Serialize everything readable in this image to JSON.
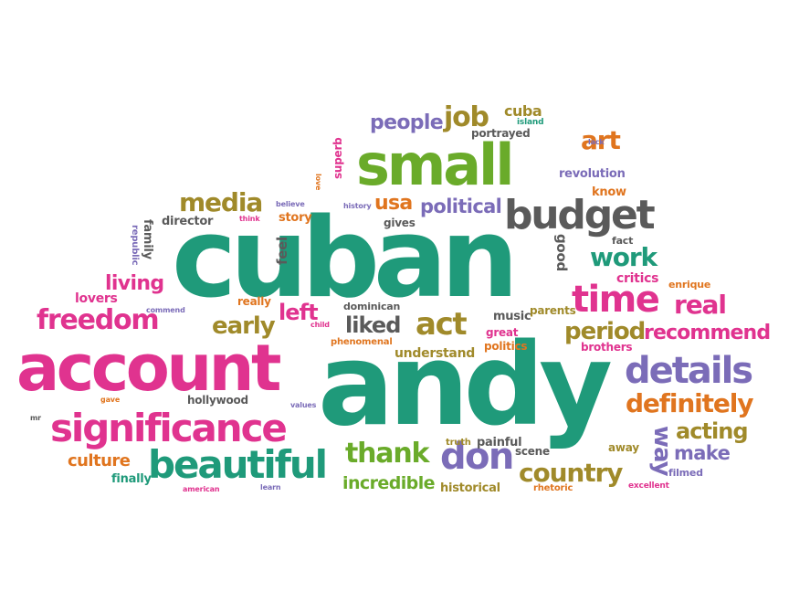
{
  "palette": {
    "green": "#1f9a7a",
    "pink": "#e0338f",
    "purple": "#7b6cb8",
    "orange": "#e0751f",
    "olive": "#a08a2a",
    "gray": "#5a5a5a",
    "lime": "#6aab2a"
  },
  "words": [
    {
      "text": "cuban",
      "color": "green"
    },
    {
      "text": "andy",
      "color": "green"
    },
    {
      "text": "account",
      "color": "pink"
    },
    {
      "text": "small",
      "color": "lime"
    },
    {
      "text": "significance",
      "color": "pink"
    },
    {
      "text": "beautiful",
      "color": "green"
    },
    {
      "text": "budget",
      "color": "gray"
    },
    {
      "text": "details",
      "color": "purple"
    },
    {
      "text": "freedom",
      "color": "pink"
    },
    {
      "text": "time",
      "color": "pink"
    },
    {
      "text": "definitely",
      "color": "orange"
    },
    {
      "text": "don",
      "color": "purple"
    },
    {
      "text": "media",
      "color": "olive"
    },
    {
      "text": "act",
      "color": "olive"
    },
    {
      "text": "country",
      "color": "olive"
    },
    {
      "text": "work",
      "color": "green"
    },
    {
      "text": "job",
      "color": "olive"
    },
    {
      "text": "people",
      "color": "purple"
    },
    {
      "text": "political",
      "color": "purple"
    },
    {
      "text": "thank",
      "color": "lime"
    },
    {
      "text": "period",
      "color": "olive"
    },
    {
      "text": "recommend",
      "color": "pink"
    },
    {
      "text": "real",
      "color": "pink"
    },
    {
      "text": "acting",
      "color": "olive"
    },
    {
      "text": "make",
      "color": "purple"
    },
    {
      "text": "living",
      "color": "pink"
    },
    {
      "text": "early",
      "color": "olive"
    },
    {
      "text": "liked",
      "color": "gray"
    },
    {
      "text": "left",
      "color": "pink"
    },
    {
      "text": "usa",
      "color": "orange"
    },
    {
      "text": "incredible",
      "color": "lime"
    },
    {
      "text": "culture",
      "color": "orange"
    },
    {
      "text": "art",
      "color": "orange"
    },
    {
      "text": "way",
      "color": "purple"
    },
    {
      "text": "cuba",
      "color": "olive"
    },
    {
      "text": "lovers",
      "color": "pink"
    },
    {
      "text": "story",
      "color": "orange"
    },
    {
      "text": "director",
      "color": "gray"
    },
    {
      "text": "feel",
      "color": "gray"
    },
    {
      "text": "critics",
      "color": "pink"
    },
    {
      "text": "understand",
      "color": "olive"
    },
    {
      "text": "hollywood",
      "color": "gray"
    },
    {
      "text": "finally",
      "color": "green"
    },
    {
      "text": "historical",
      "color": "olive"
    },
    {
      "text": "good",
      "color": "gray"
    },
    {
      "text": "gives",
      "color": "gray"
    },
    {
      "text": "music",
      "color": "gray"
    },
    {
      "text": "parents",
      "color": "olive"
    },
    {
      "text": "politics",
      "color": "orange"
    },
    {
      "text": "great",
      "color": "pink"
    },
    {
      "text": "brothers",
      "color": "pink"
    },
    {
      "text": "painful",
      "color": "gray"
    },
    {
      "text": "scene",
      "color": "gray"
    },
    {
      "text": "away",
      "color": "olive"
    },
    {
      "text": "filmed",
      "color": "purple"
    },
    {
      "text": "revolution",
      "color": "purple"
    },
    {
      "text": "know",
      "color": "orange"
    },
    {
      "text": "fact",
      "color": "gray"
    },
    {
      "text": "enrique",
      "color": "orange"
    },
    {
      "text": "dominican",
      "color": "gray"
    },
    {
      "text": "superb",
      "color": "pink"
    },
    {
      "text": "portrayed",
      "color": "gray"
    },
    {
      "text": "island",
      "color": "green"
    },
    {
      "text": "lack",
      "color": "purple"
    },
    {
      "text": "truth",
      "color": "olive"
    },
    {
      "text": "rhetoric",
      "color": "orange"
    },
    {
      "text": "excellent",
      "color": "pink"
    },
    {
      "text": "family",
      "color": "gray"
    },
    {
      "text": "republic",
      "color": "purple"
    },
    {
      "text": "really",
      "color": "orange"
    },
    {
      "text": "commend",
      "color": "purple"
    },
    {
      "text": "child",
      "color": "pink"
    },
    {
      "text": "phenomenal",
      "color": "orange"
    },
    {
      "text": "values",
      "color": "purple"
    },
    {
      "text": "gave",
      "color": "orange"
    },
    {
      "text": "mr",
      "color": "gray"
    },
    {
      "text": "american",
      "color": "pink"
    },
    {
      "text": "learn",
      "color": "purple"
    },
    {
      "text": "believe",
      "color": "purple"
    },
    {
      "text": "think",
      "color": "pink"
    },
    {
      "text": "history",
      "color": "purple"
    },
    {
      "text": "love",
      "color": "orange"
    }
  ]
}
